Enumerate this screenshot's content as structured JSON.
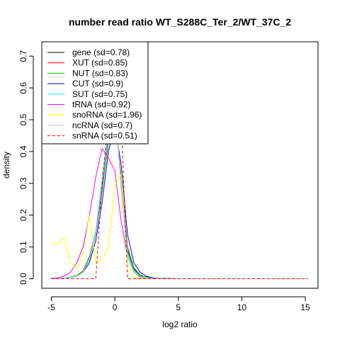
{
  "chart_data": {
    "type": "line",
    "title": "number read ratio WT_S288C_Ter_2/WT_37C_2",
    "xlabel": "log2 ratio",
    "ylabel": "density",
    "xlim": [
      -5.75,
      16.0
    ],
    "ylim": [
      -0.03,
      0.745
    ],
    "xticks": [
      "-5",
      "0",
      "5",
      "10",
      "15"
    ],
    "yticks": [
      "0.0",
      "0.1",
      "0.2",
      "0.3",
      "0.4",
      "0.5",
      "0.6",
      "0.7"
    ],
    "x": [
      -5,
      -4.5,
      -4,
      -3.5,
      -3,
      -2.5,
      -2,
      -1.5,
      -1,
      -0.5,
      0,
      0.5,
      1,
      1.5,
      2,
      2.5,
      3,
      3.5,
      4,
      5,
      6,
      7,
      8,
      9,
      10,
      11,
      12,
      13,
      14,
      15.2
    ],
    "legend_position": "top-left",
    "series": [
      {
        "name": "gene (sd=0.78)",
        "color": "#000000",
        "dash": "",
        "values": [
          0.001,
          0.001,
          0.002,
          0.004,
          0.008,
          0.02,
          0.06,
          0.14,
          0.28,
          0.44,
          0.55,
          0.3,
          0.09,
          0.03,
          0.01,
          0.005,
          0.002,
          0.001,
          0.0005,
          0,
          0,
          0,
          0,
          0,
          0,
          0,
          0,
          0,
          0,
          0
        ]
      },
      {
        "name": "XUT (sd=0.85)",
        "color": "#ff0000",
        "dash": "",
        "values": [
          0.001,
          0.001,
          0.002,
          0.005,
          0.01,
          0.025,
          0.07,
          0.15,
          0.29,
          0.43,
          0.52,
          0.32,
          0.1,
          0.035,
          0.012,
          0.005,
          0.002,
          0.001,
          0.0005,
          0,
          0,
          0,
          0,
          0,
          0,
          0,
          0,
          0,
          0,
          0
        ]
      },
      {
        "name": "NUT (sd=0.83)",
        "color": "#00cd00",
        "dash": "",
        "values": [
          0.001,
          0.001,
          0.002,
          0.005,
          0.01,
          0.024,
          0.068,
          0.15,
          0.29,
          0.44,
          0.53,
          0.31,
          0.095,
          0.033,
          0.011,
          0.005,
          0.002,
          0.001,
          0.0005,
          0,
          0,
          0,
          0,
          0,
          0,
          0,
          0,
          0,
          0,
          0
        ]
      },
      {
        "name": "CUT (sd=0.9)",
        "color": "#0000ff",
        "dash": "",
        "values": [
          0.001,
          0.001,
          0.002,
          0.004,
          0.008,
          0.02,
          0.05,
          0.12,
          0.24,
          0.4,
          0.48,
          0.36,
          0.14,
          0.05,
          0.02,
          0.008,
          0.003,
          0.001,
          0.0005,
          0,
          0,
          0,
          0,
          0,
          0,
          0,
          0,
          0,
          0,
          0
        ]
      },
      {
        "name": "SUT (sd=0.75)",
        "color": "#00ffff",
        "dash": "",
        "values": [
          0.001,
          0.001,
          0.002,
          0.004,
          0.008,
          0.02,
          0.06,
          0.14,
          0.3,
          0.46,
          0.56,
          0.29,
          0.08,
          0.025,
          0.008,
          0.003,
          0.001,
          0.0005,
          0,
          0,
          0,
          0,
          0,
          0,
          0,
          0,
          0,
          0,
          0,
          0
        ]
      },
      {
        "name": "tRNA (sd=0.92)",
        "color": "#ff00ff",
        "dash": "",
        "values": [
          0.002,
          0.003,
          0.008,
          0.02,
          0.05,
          0.1,
          0.2,
          0.32,
          0.41,
          0.38,
          0.34,
          0.18,
          0.07,
          0.02,
          0.005,
          0.002,
          0.001,
          0,
          0,
          0,
          0,
          0,
          0,
          0,
          0,
          0,
          0,
          0,
          0,
          0
        ]
      },
      {
        "name": "snoRNA (sd=1.96)",
        "color": "#ffff00",
        "dash": "",
        "values": [
          0.11,
          0.11,
          0.13,
          0.05,
          0.03,
          0.08,
          0.2,
          0.05,
          0.06,
          0.1,
          0.29,
          0.33,
          0.05,
          0.005,
          0.002,
          0.001,
          0,
          0,
          0,
          0,
          0,
          0,
          0,
          0,
          0,
          0,
          0,
          0,
          0,
          0
        ]
      },
      {
        "name": "ncRNA (sd=0.7)",
        "color": "#bebebe",
        "dash": "",
        "values": [
          0.001,
          0.001,
          0.002,
          0.004,
          0.008,
          0.02,
          0.06,
          0.15,
          0.32,
          0.47,
          0.57,
          0.28,
          0.07,
          0.02,
          0.007,
          0.002,
          0.001,
          0,
          0,
          0,
          0,
          0,
          0,
          0,
          0,
          0,
          0,
          0,
          0,
          0
        ]
      },
      {
        "name": "snRNA (sd=0.51)",
        "color": "#ff0000",
        "dash": "4,3",
        "values": [
          0,
          0,
          0,
          0,
          0,
          0,
          0,
          0,
          0.3,
          0.5,
          0.62,
          0.5,
          0,
          0,
          0,
          0,
          0,
          0,
          0,
          0,
          0,
          0,
          0,
          0,
          0,
          0,
          0,
          0,
          0,
          0
        ]
      }
    ]
  }
}
